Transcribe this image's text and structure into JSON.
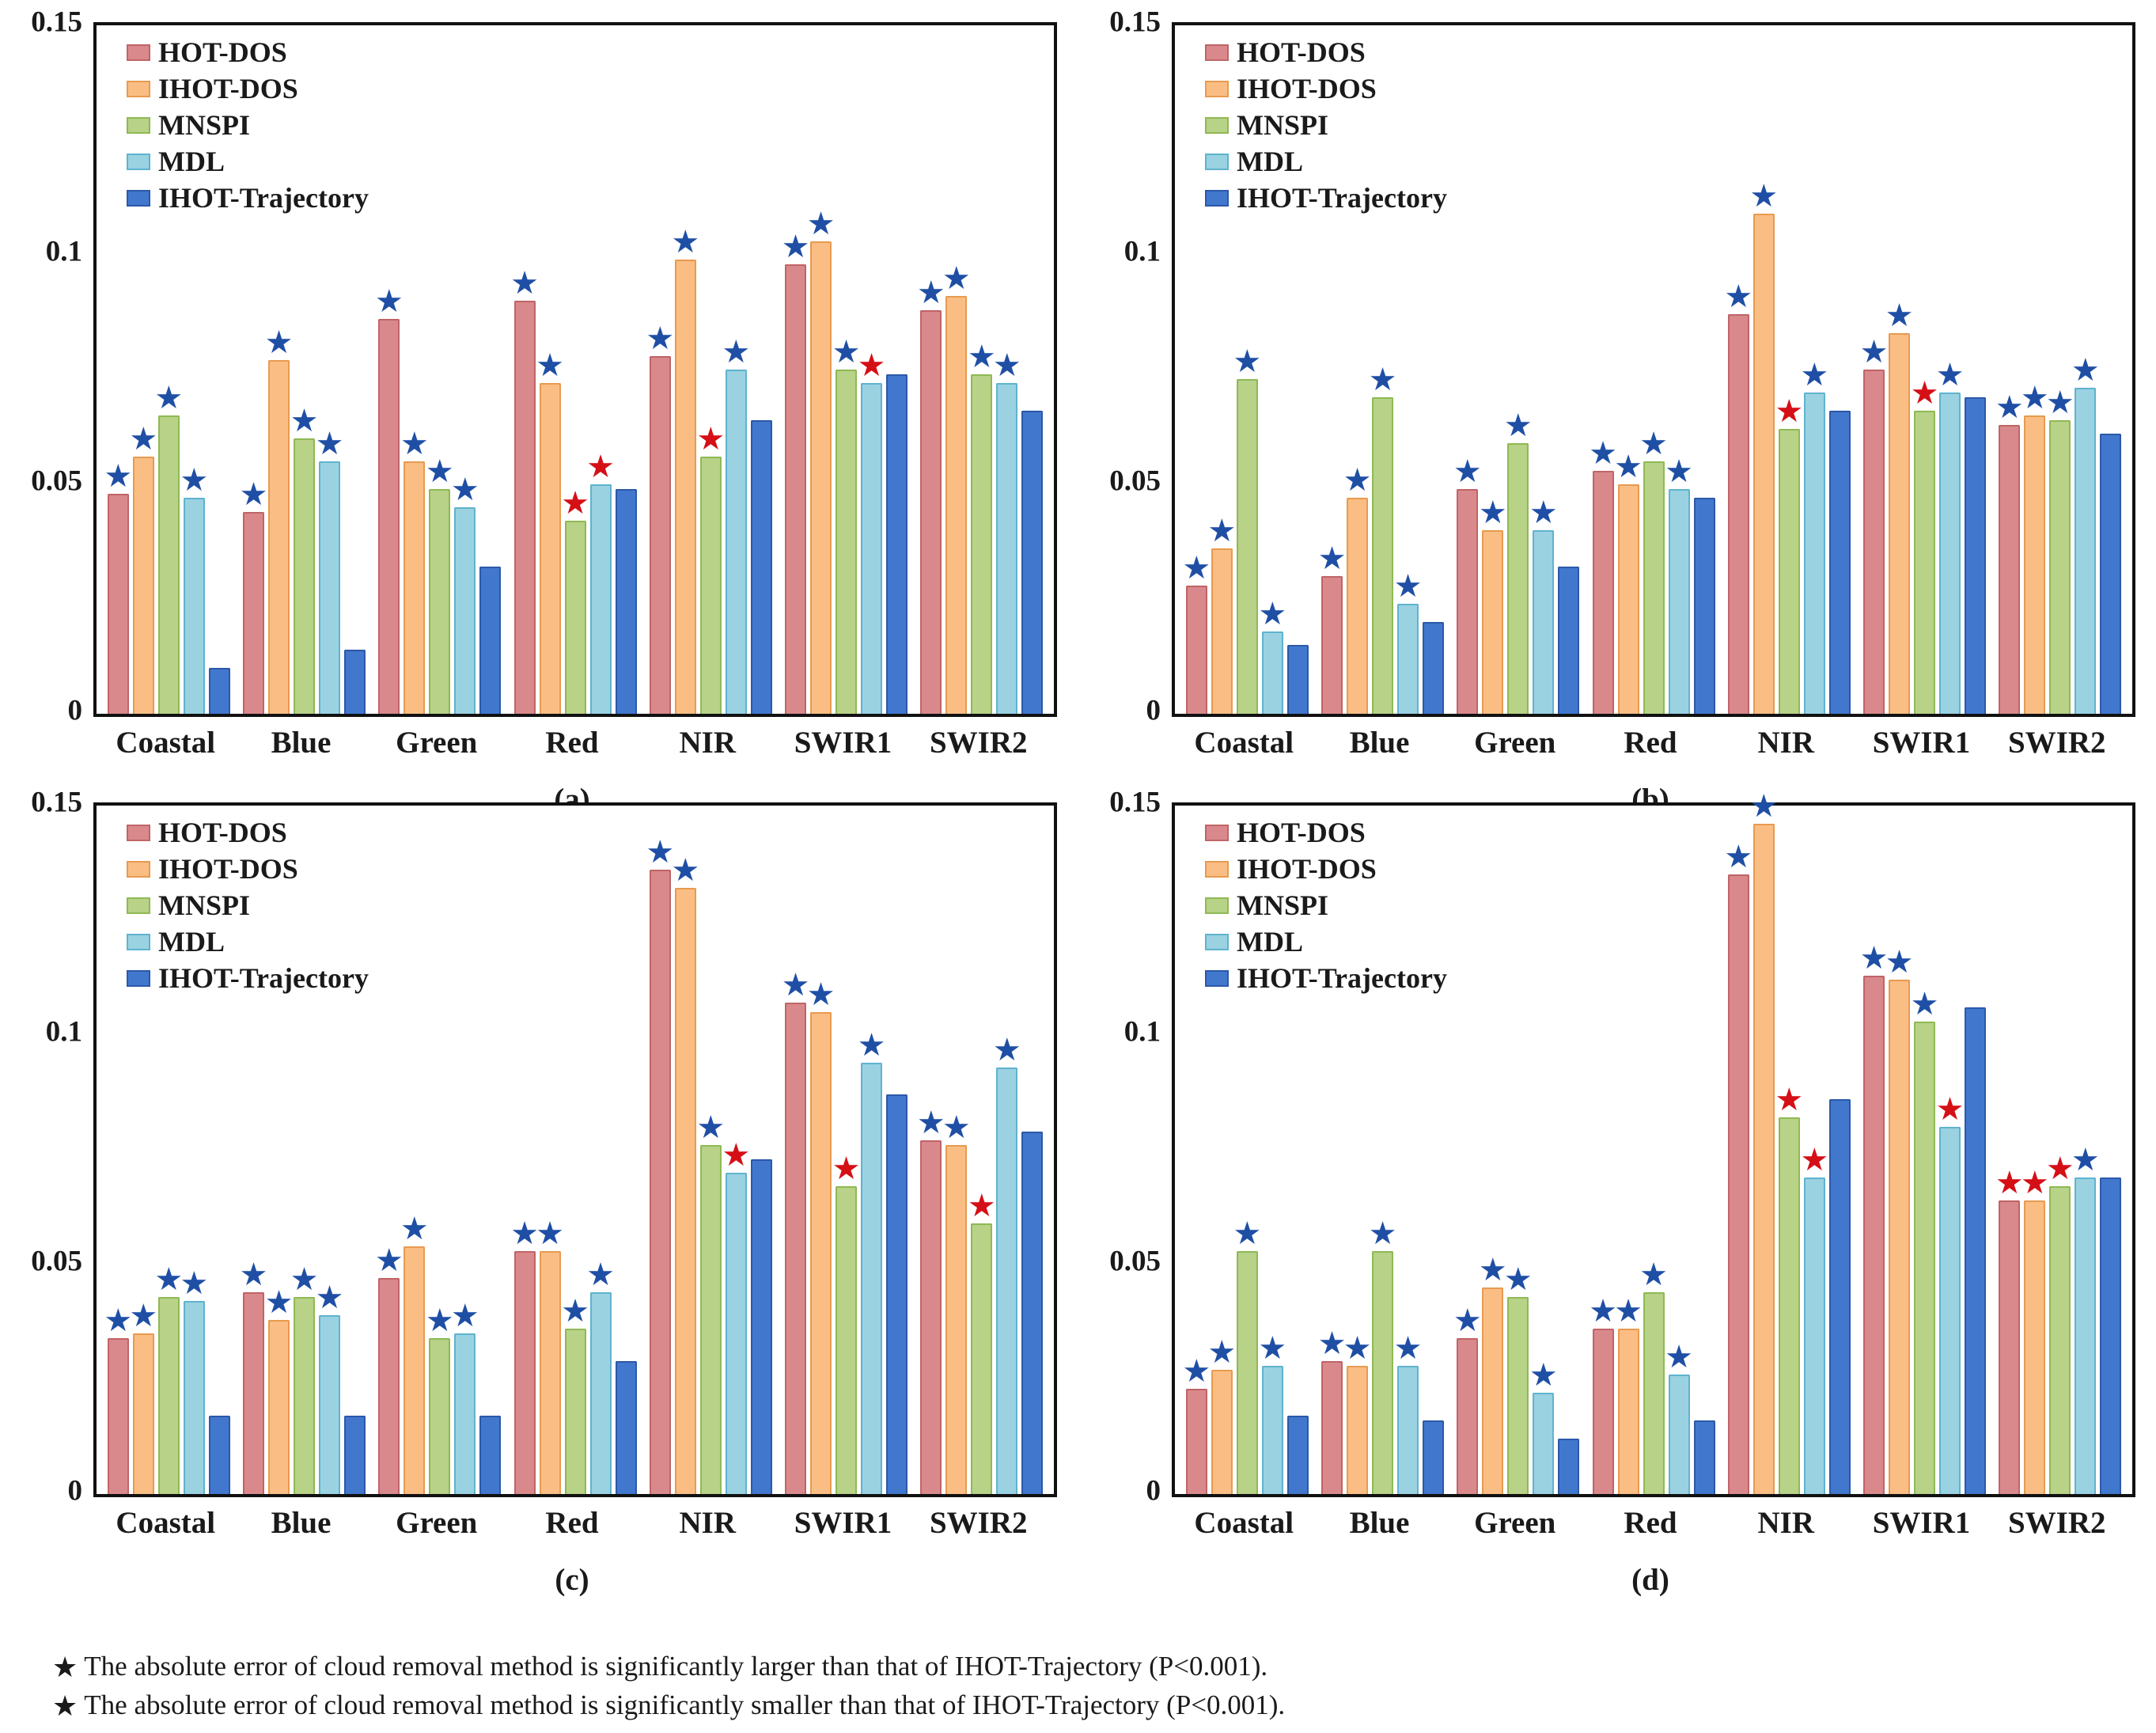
{
  "figure": {
    "footnotes": [
      {
        "star": "blue",
        "text": "The absolute error of cloud removal method is significantly larger than that of IHOT-Trajectory (P<0.001)."
      },
      {
        "star": "red",
        "text": "The absolute error of cloud removal method is significantly smaller than that of IHOT-Trajectory (P<0.001)."
      }
    ],
    "star_colors": {
      "blue": "#1F4FA5",
      "red": "#D50F16"
    },
    "series_colors": {
      "HOT-DOS": {
        "fill": "#D9898C",
        "border": "#C06467"
      },
      "IHOT-DOS": {
        "fill": "#FABE84",
        "border": "#E89A50"
      },
      "MNSPI": {
        "fill": "#B8D288",
        "border": "#8FB954"
      },
      "MDL": {
        "fill": "#9AD2E2",
        "border": "#5FB3CE"
      },
      "IHOT-Trajectory": {
        "fill": "#4277CE",
        "border": "#2C59A8"
      }
    }
  },
  "chart_data": [
    {
      "type": "bar",
      "caption": "(a)",
      "ylim": [
        0,
        0.15
      ],
      "yticks": [
        {
          "label": "0",
          "value": 0
        },
        {
          "label": "0.05",
          "value": 0.05
        },
        {
          "label": "0.1",
          "value": 0.1
        },
        {
          "label": "0.15",
          "value": 0.15
        }
      ],
      "categories": [
        "Coastal",
        "Blue",
        "Green",
        "Red",
        "NIR",
        "SWIR1",
        "SWIR2"
      ],
      "series": [
        {
          "name": "HOT-DOS",
          "values": [
            0.048,
            0.044,
            0.086,
            0.09,
            0.078,
            0.098,
            0.088
          ],
          "stars": [
            "blue",
            "blue",
            "blue",
            "blue",
            "blue",
            "blue",
            "blue"
          ]
        },
        {
          "name": "IHOT-DOS",
          "values": [
            0.056,
            0.077,
            0.055,
            0.072,
            0.099,
            0.103,
            0.091
          ],
          "stars": [
            "blue",
            "blue",
            "blue",
            "blue",
            "blue",
            "blue",
            "blue"
          ]
        },
        {
          "name": "MNSPI",
          "values": [
            0.065,
            0.06,
            0.049,
            0.042,
            0.056,
            0.075,
            0.074
          ],
          "stars": [
            "blue",
            "blue",
            "blue",
            "red",
            "red",
            "blue",
            "blue"
          ]
        },
        {
          "name": "MDL",
          "values": [
            0.047,
            0.055,
            0.045,
            0.05,
            0.075,
            0.072,
            0.072
          ],
          "stars": [
            "blue",
            "blue",
            "blue",
            "red",
            "blue",
            "red",
            "blue"
          ]
        },
        {
          "name": "IHOT-Trajectory",
          "values": [
            0.01,
            0.014,
            0.032,
            0.049,
            0.064,
            0.074,
            0.066
          ],
          "stars": [
            null,
            null,
            null,
            null,
            null,
            null,
            null
          ]
        }
      ]
    },
    {
      "type": "bar",
      "caption": "(b)",
      "ylim": [
        0,
        0.15
      ],
      "yticks": [
        {
          "label": "0",
          "value": 0
        },
        {
          "label": "0.05",
          "value": 0.05
        },
        {
          "label": "0.1",
          "value": 0.1
        },
        {
          "label": "0.15",
          "value": 0.15
        }
      ],
      "categories": [
        "Coastal",
        "Blue",
        "Green",
        "Red",
        "NIR",
        "SWIR1",
        "SWIR2"
      ],
      "series": [
        {
          "name": "HOT-DOS",
          "values": [
            0.028,
            0.03,
            0.049,
            0.053,
            0.087,
            0.075,
            0.063
          ],
          "stars": [
            "blue",
            "blue",
            "blue",
            "blue",
            "blue",
            "blue",
            "blue"
          ]
        },
        {
          "name": "IHOT-DOS",
          "values": [
            0.036,
            0.047,
            0.04,
            0.05,
            0.109,
            0.083,
            0.065
          ],
          "stars": [
            "blue",
            "blue",
            "blue",
            "blue",
            "blue",
            "blue",
            "blue"
          ]
        },
        {
          "name": "MNSPI",
          "values": [
            0.073,
            0.069,
            0.059,
            0.055,
            0.062,
            0.066,
            0.064
          ],
          "stars": [
            "blue",
            "blue",
            "blue",
            "blue",
            "red",
            "red",
            "blue"
          ]
        },
        {
          "name": "MDL",
          "values": [
            0.018,
            0.024,
            0.04,
            0.049,
            0.07,
            0.07,
            0.071
          ],
          "stars": [
            "blue",
            "blue",
            "blue",
            "blue",
            "blue",
            "blue",
            "blue"
          ]
        },
        {
          "name": "IHOT-Trajectory",
          "values": [
            0.015,
            0.02,
            0.032,
            0.047,
            0.066,
            0.069,
            0.061
          ],
          "stars": [
            null,
            null,
            null,
            null,
            null,
            null,
            null
          ]
        }
      ]
    },
    {
      "type": "bar",
      "caption": "(c)",
      "ylim": [
        0,
        0.15
      ],
      "yticks": [
        {
          "label": "0",
          "value": 0
        },
        {
          "label": "0.05",
          "value": 0.05
        },
        {
          "label": "0.1",
          "value": 0.1
        },
        {
          "label": "0.15",
          "value": 0.15
        }
      ],
      "categories": [
        "Coastal",
        "Blue",
        "Green",
        "Red",
        "NIR",
        "SWIR1",
        "SWIR2"
      ],
      "series": [
        {
          "name": "HOT-DOS",
          "values": [
            0.034,
            0.044,
            0.047,
            0.053,
            0.136,
            0.107,
            0.077
          ],
          "stars": [
            "blue",
            "blue",
            "blue",
            "blue",
            "blue",
            "blue",
            "blue"
          ]
        },
        {
          "name": "IHOT-DOS",
          "values": [
            0.035,
            0.038,
            0.054,
            0.053,
            0.132,
            0.105,
            0.076
          ],
          "stars": [
            "blue",
            "blue",
            "blue",
            "blue",
            "blue",
            "blue",
            "blue"
          ]
        },
        {
          "name": "MNSPI",
          "values": [
            0.043,
            0.043,
            0.034,
            0.036,
            0.076,
            0.067,
            0.059
          ],
          "stars": [
            "blue",
            "blue",
            "blue",
            "blue",
            "blue",
            "red",
            "red"
          ]
        },
        {
          "name": "MDL",
          "values": [
            0.042,
            0.039,
            0.035,
            0.044,
            0.07,
            0.094,
            0.093
          ],
          "stars": [
            "blue",
            "blue",
            "blue",
            "blue",
            "red",
            "blue",
            "blue"
          ]
        },
        {
          "name": "IHOT-Trajectory",
          "values": [
            0.017,
            0.017,
            0.017,
            0.029,
            0.073,
            0.087,
            0.079
          ],
          "stars": [
            null,
            null,
            null,
            null,
            null,
            null,
            null
          ]
        }
      ]
    },
    {
      "type": "bar",
      "caption": "(d)",
      "ylim": [
        0,
        0.15
      ],
      "yticks": [
        {
          "label": "0",
          "value": 0
        },
        {
          "label": "0.05",
          "value": 0.05
        },
        {
          "label": "0.1",
          "value": 0.1
        },
        {
          "label": "0.15",
          "value": 0.15
        }
      ],
      "categories": [
        "Coastal",
        "Blue",
        "Green",
        "Red",
        "NIR",
        "SWIR1",
        "SWIR2"
      ],
      "series": [
        {
          "name": "HOT-DOS",
          "values": [
            0.023,
            0.029,
            0.034,
            0.036,
            0.135,
            0.113,
            0.064
          ],
          "stars": [
            "blue",
            "blue",
            "blue",
            "blue",
            "blue",
            "blue",
            "red"
          ]
        },
        {
          "name": "IHOT-DOS",
          "values": [
            0.027,
            0.028,
            0.045,
            0.036,
            0.146,
            0.112,
            0.064
          ],
          "stars": [
            "blue",
            "blue",
            "blue",
            "blue",
            "blue",
            "blue",
            "red"
          ]
        },
        {
          "name": "MNSPI",
          "values": [
            0.053,
            0.053,
            0.043,
            0.044,
            0.082,
            0.103,
            0.067
          ],
          "stars": [
            "blue",
            "blue",
            "blue",
            "blue",
            "red",
            "blue",
            "red"
          ]
        },
        {
          "name": "MDL",
          "values": [
            0.028,
            0.028,
            0.022,
            0.026,
            0.069,
            0.08,
            0.069
          ],
          "stars": [
            "blue",
            "blue",
            "blue",
            "blue",
            "red",
            "red",
            "blue"
          ]
        },
        {
          "name": "IHOT-Trajectory",
          "values": [
            0.017,
            0.016,
            0.012,
            0.016,
            0.086,
            0.106,
            0.069
          ],
          "stars": [
            null,
            null,
            null,
            null,
            null,
            null,
            null
          ]
        }
      ]
    }
  ]
}
